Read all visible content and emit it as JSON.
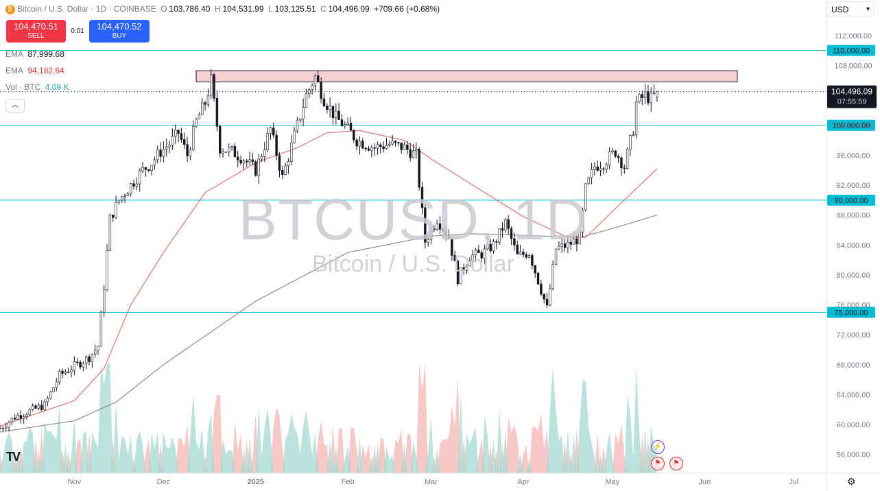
{
  "header": {
    "symbol_title": "Bitcoin / U.S. Dollar · 1D · COINBASE",
    "ohlc": {
      "o_label": "O",
      "o": "103,786.40",
      "h_label": "H",
      "h": "104,531.99",
      "l_label": "L",
      "l": "103,125.51",
      "c_label": "C",
      "c": "104,496.09",
      "change": "+709.66 (+0.68%)"
    }
  },
  "trade": {
    "sell_price": "104,470.51",
    "sell_label": "SELL",
    "spread": "0.01",
    "buy_price": "104,470.52",
    "buy_label": "BUY"
  },
  "indicators": {
    "ema1_label": "EMA",
    "ema1_value": "87,999.68",
    "ema2_label": "EMA",
    "ema2_value": "94,182.64",
    "vol_label": "Vol · BTC",
    "vol_value": "4.09 K"
  },
  "currency_button": "USD",
  "collapse_icon": "chevron-up-icon",
  "watermark": {
    "ticker": "BTCUSD, 1D",
    "name": "Bitcoin / U.S. Dollar"
  },
  "last_price": {
    "value": "104,496.09",
    "countdown": "07:55:59"
  },
  "tradingview_logo": "TV",
  "colors": {
    "up": "#26a69a",
    "down": "#ef5350",
    "level": "#00bcd4",
    "ema_fast": "#e57373",
    "ema_slow": "#8c8c8c",
    "zone_fill": "#f8d0d3",
    "label_bg": "#131722"
  },
  "chart_data": {
    "type": "candlestick",
    "title": "Bitcoin / U.S. Dollar · 1D · COINBASE",
    "ylim": [
      53500,
      114000
    ],
    "y_ticks": [
      112000,
      108000,
      104000,
      100000,
      96000,
      92000,
      88000,
      84000,
      80000,
      76000,
      72000,
      68000,
      64000,
      60000,
      56000
    ],
    "y_tick_labels": [
      "112,000.00",
      "108,000.00",
      "104,000.00",
      "100,000.00",
      "96,000.00",
      "92,000.00",
      "88,000.00",
      "84,000.00",
      "80,000.00",
      "76,000.00",
      "72,000.00",
      "68,000.00",
      "64,000.00",
      "60,000.00",
      "56,000.00"
    ],
    "x_labels": [
      {
        "label": "Nov",
        "date": "2024-11-01"
      },
      {
        "label": "Dec",
        "date": "2024-12-01"
      },
      {
        "label": "2025",
        "date": "2025-01-01"
      },
      {
        "label": "Feb",
        "date": "2025-02-01"
      },
      {
        "label": "Mar",
        "date": "2025-03-01"
      },
      {
        "label": "Apr",
        "date": "2025-04-01"
      },
      {
        "label": "May",
        "date": "2025-05-01"
      },
      {
        "label": "Jun",
        "date": "2025-06-01"
      },
      {
        "label": "Jul",
        "date": "2025-07-01"
      }
    ],
    "x_range": [
      "2024-10-07",
      "2025-07-12"
    ],
    "price_levels": [
      {
        "value": 110000,
        "label": "110,000.00"
      },
      {
        "value": 100000,
        "label": "100,000.00"
      },
      {
        "value": 90000,
        "label": "90,000.00"
      },
      {
        "value": 75000,
        "label": "75,000.00"
      }
    ],
    "resistance_zone": {
      "from": "2024-12-12",
      "to": "2025-06-12",
      "low": 105800,
      "high": 107300
    },
    "last_price_value": 104496.09,
    "closes": [
      [
        "2024-10-07",
        59500
      ],
      [
        "2024-10-12",
        61000
      ],
      [
        "2024-10-17",
        61800
      ],
      [
        "2024-10-22",
        62600
      ],
      [
        "2024-10-27",
        66600
      ],
      [
        "2024-11-01",
        67800
      ],
      [
        "2024-11-06",
        69000
      ],
      [
        "2024-11-09",
        70500
      ],
      [
        "2024-11-11",
        78500
      ],
      [
        "2024-11-13",
        87500
      ],
      [
        "2024-11-16",
        90000
      ],
      [
        "2024-11-20",
        92000
      ],
      [
        "2024-11-24",
        94000
      ],
      [
        "2024-11-27",
        95000
      ],
      [
        "2024-11-30",
        96500
      ],
      [
        "2024-12-03",
        97500
      ],
      [
        "2024-12-06",
        99000
      ],
      [
        "2024-12-09",
        96000
      ],
      [
        "2024-12-12",
        100500
      ],
      [
        "2024-12-15",
        103000
      ],
      [
        "2024-12-17",
        106000
      ],
      [
        "2024-12-20",
        97000
      ],
      [
        "2024-12-24",
        96500
      ],
      [
        "2024-12-28",
        95500
      ],
      [
        "2025-01-01",
        94000
      ],
      [
        "2025-01-06",
        99500
      ],
      [
        "2025-01-10",
        93000
      ],
      [
        "2025-01-15",
        100000
      ],
      [
        "2025-01-18",
        104000
      ],
      [
        "2025-01-21",
        106500
      ],
      [
        "2025-01-24",
        103500
      ],
      [
        "2025-01-28",
        101000
      ],
      [
        "2025-02-01",
        99500
      ],
      [
        "2025-02-04",
        98000
      ],
      [
        "2025-02-10",
        97000
      ],
      [
        "2025-02-15",
        97500
      ],
      [
        "2025-02-20",
        97000
      ],
      [
        "2025-02-24",
        96000
      ],
      [
        "2025-02-27",
        84500
      ],
      [
        "2025-03-03",
        87500
      ],
      [
        "2025-03-07",
        85000
      ],
      [
        "2025-03-10",
        79500
      ],
      [
        "2025-03-14",
        82500
      ],
      [
        "2025-03-18",
        82800
      ],
      [
        "2025-03-22",
        84000
      ],
      [
        "2025-03-26",
        87000
      ],
      [
        "2025-03-30",
        82500
      ],
      [
        "2025-04-03",
        83000
      ],
      [
        "2025-04-07",
        78000
      ],
      [
        "2025-04-09",
        75500
      ],
      [
        "2025-04-12",
        83500
      ],
      [
        "2025-04-16",
        84000
      ],
      [
        "2025-04-20",
        85000
      ],
      [
        "2025-04-22",
        91500
      ],
      [
        "2025-04-25",
        94500
      ],
      [
        "2025-04-28",
        95000
      ],
      [
        "2025-05-02",
        96500
      ],
      [
        "2025-05-05",
        94500
      ],
      [
        "2025-05-08",
        99500
      ],
      [
        "2025-05-09",
        103000
      ],
      [
        "2025-05-12",
        104000
      ],
      [
        "2025-05-14",
        103500
      ],
      [
        "2025-05-16",
        104496.09
      ]
    ],
    "ema_fast": [
      [
        "2024-10-07",
        59800
      ],
      [
        "2024-11-01",
        63200
      ],
      [
        "2024-11-11",
        67500
      ],
      [
        "2024-11-20",
        76000
      ],
      [
        "2024-12-01",
        83000
      ],
      [
        "2024-12-15",
        91000
      ],
      [
        "2025-01-01",
        95000
      ],
      [
        "2025-01-15",
        97000
      ],
      [
        "2025-01-25",
        99000
      ],
      [
        "2025-02-05",
        99300
      ],
      [
        "2025-02-20",
        98000
      ],
      [
        "2025-03-01",
        95500
      ],
      [
        "2025-03-15",
        92000
      ],
      [
        "2025-04-01",
        87800
      ],
      [
        "2025-04-15",
        85200
      ],
      [
        "2025-04-22",
        85000
      ],
      [
        "2025-05-01",
        88500
      ],
      [
        "2025-05-16",
        94182.64
      ]
    ],
    "ema_slow": [
      [
        "2024-10-07",
        59000
      ],
      [
        "2024-11-01",
        60500
      ],
      [
        "2024-11-15",
        63000
      ],
      [
        "2024-12-01",
        68000
      ],
      [
        "2025-01-01",
        76500
      ],
      [
        "2025-02-01",
        83000
      ],
      [
        "2025-03-01",
        85200
      ],
      [
        "2025-03-15",
        85500
      ],
      [
        "2025-04-01",
        85300
      ],
      [
        "2025-04-20",
        85000
      ],
      [
        "2025-05-01",
        86200
      ],
      [
        "2025-05-16",
        87999.68
      ]
    ],
    "series": [
      {
        "name": "EMA",
        "values": "ema_fast"
      },
      {
        "name": "EMA",
        "values": "ema_slow"
      },
      {
        "name": "Vol · BTC"
      }
    ]
  }
}
